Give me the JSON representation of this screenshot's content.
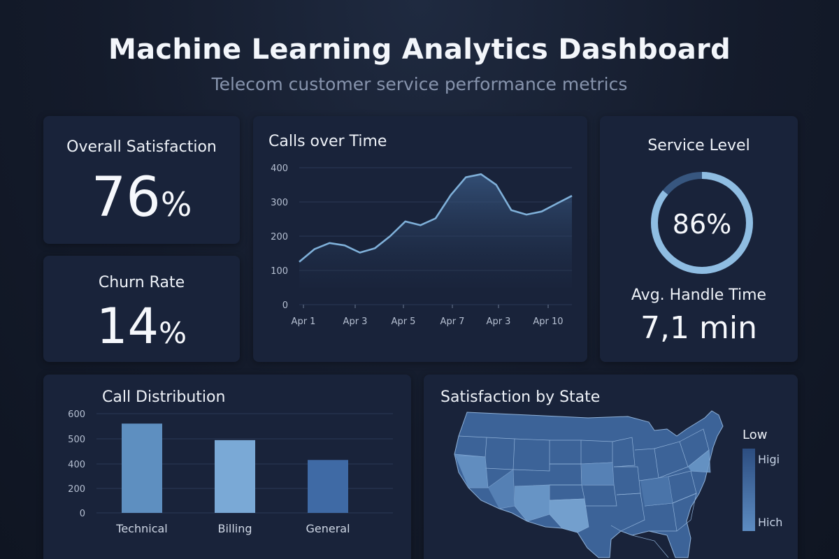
{
  "header": {
    "title": "Machine Learning Analytics Dashboard",
    "subtitle": "Telecom customer service performance metrics"
  },
  "kpis": {
    "satisfaction": {
      "label": "Overall Satisfaction",
      "value": "76",
      "unit": "%"
    },
    "churn": {
      "label": "Churn Rate",
      "value": "14",
      "unit": "%"
    },
    "service_level": {
      "label": "Service Level",
      "value": "86%",
      "level": 0.86
    },
    "handle_time": {
      "label": "Avg. Handle Time",
      "value": "7,1 min"
    }
  },
  "calls_chart": {
    "title": "Calls over Time"
  },
  "distribution_chart": {
    "title": "Call Distribution"
  },
  "map": {
    "title": "Satisfaction by State",
    "legend": {
      "low": "Low",
      "high_top": "Higі",
      "high_bottom": "Hich"
    }
  },
  "colors": {
    "line": "#7fb0d9",
    "bar_technical": "#5e8fc0",
    "bar_billing": "#7aa9d6",
    "bar_general": "#3f6aa5",
    "ring_track": "#37567f",
    "ring_fill": "#8fbde2"
  },
  "chart_data": [
    {
      "type": "area",
      "title": "Calls over Time",
      "y_ticks": [
        "0",
        "100",
        "200",
        "300",
        "400"
      ],
      "x_ticks": [
        "Apr 1",
        "Apr 3",
        "Apr 5",
        "Apr 7",
        "Apr 3",
        "Apr 10"
      ],
      "ylim": [
        0,
        400
      ],
      "grid": true,
      "values": [
        125,
        162,
        180,
        173,
        152,
        165,
        200,
        243,
        232,
        252,
        320,
        372,
        381,
        350,
        276,
        263,
        272,
        295,
        318
      ]
    },
    {
      "type": "bar",
      "title": "Call Distribution",
      "y_ticks": [
        "0",
        "200",
        "400",
        "500",
        "600"
      ],
      "categories": [
        "Technical",
        "Billing",
        "General"
      ],
      "values": [
        540,
        440,
        320
      ],
      "ylim": [
        0,
        600
      ],
      "grid": true
    }
  ]
}
